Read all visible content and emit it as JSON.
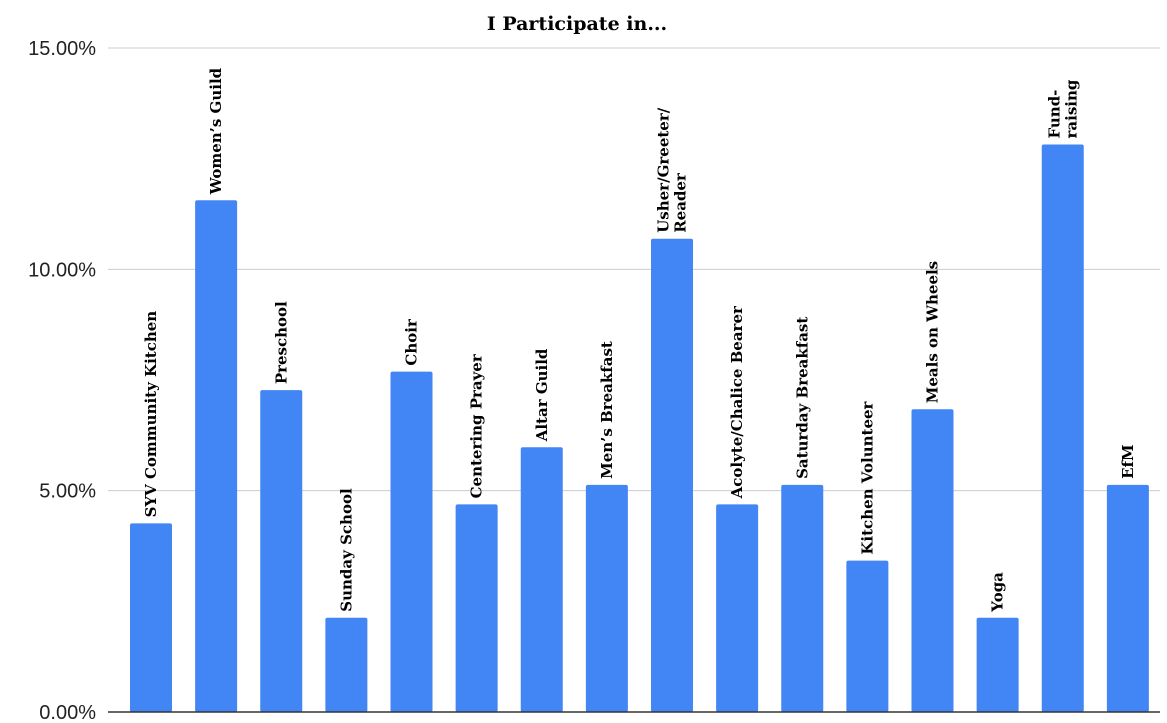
{
  "chart_data": {
    "type": "bar",
    "title": "I Participate in...",
    "xlabel": "",
    "ylabel": "",
    "ylim": [
      0,
      15
    ],
    "y_ticks": [
      "0.00%",
      "5.00%",
      "10.00%",
      "15.00%"
    ],
    "y_tick_values": [
      0,
      5,
      10,
      15
    ],
    "grid": true,
    "legend": "none",
    "bar_color": "#4285f4",
    "categories": [
      [
        "SYV Community Kitchen"
      ],
      [
        "Women’s Guild"
      ],
      [
        "Preschool"
      ],
      [
        "Sunday School"
      ],
      [
        "Choir"
      ],
      [
        "Centering Prayer"
      ],
      [
        "Altar Guild"
      ],
      [
        "Men’s Breakfast"
      ],
      [
        "Usher/Greeter/",
        "Reader"
      ],
      [
        "Acolyte/Chalice Bearer"
      ],
      [
        "Saturday Breakfast"
      ],
      [
        "Kitchen Volunteer"
      ],
      [
        "Meals on Wheels"
      ],
      [
        "Yoga"
      ],
      [
        "Fund-",
        "raising"
      ],
      [
        "EfM"
      ]
    ],
    "values": [
      4.26,
      11.56,
      7.27,
      2.13,
      7.69,
      4.69,
      5.98,
      5.13,
      10.69,
      4.69,
      5.13,
      3.42,
      6.84,
      2.13,
      12.82,
      5.13
    ]
  }
}
